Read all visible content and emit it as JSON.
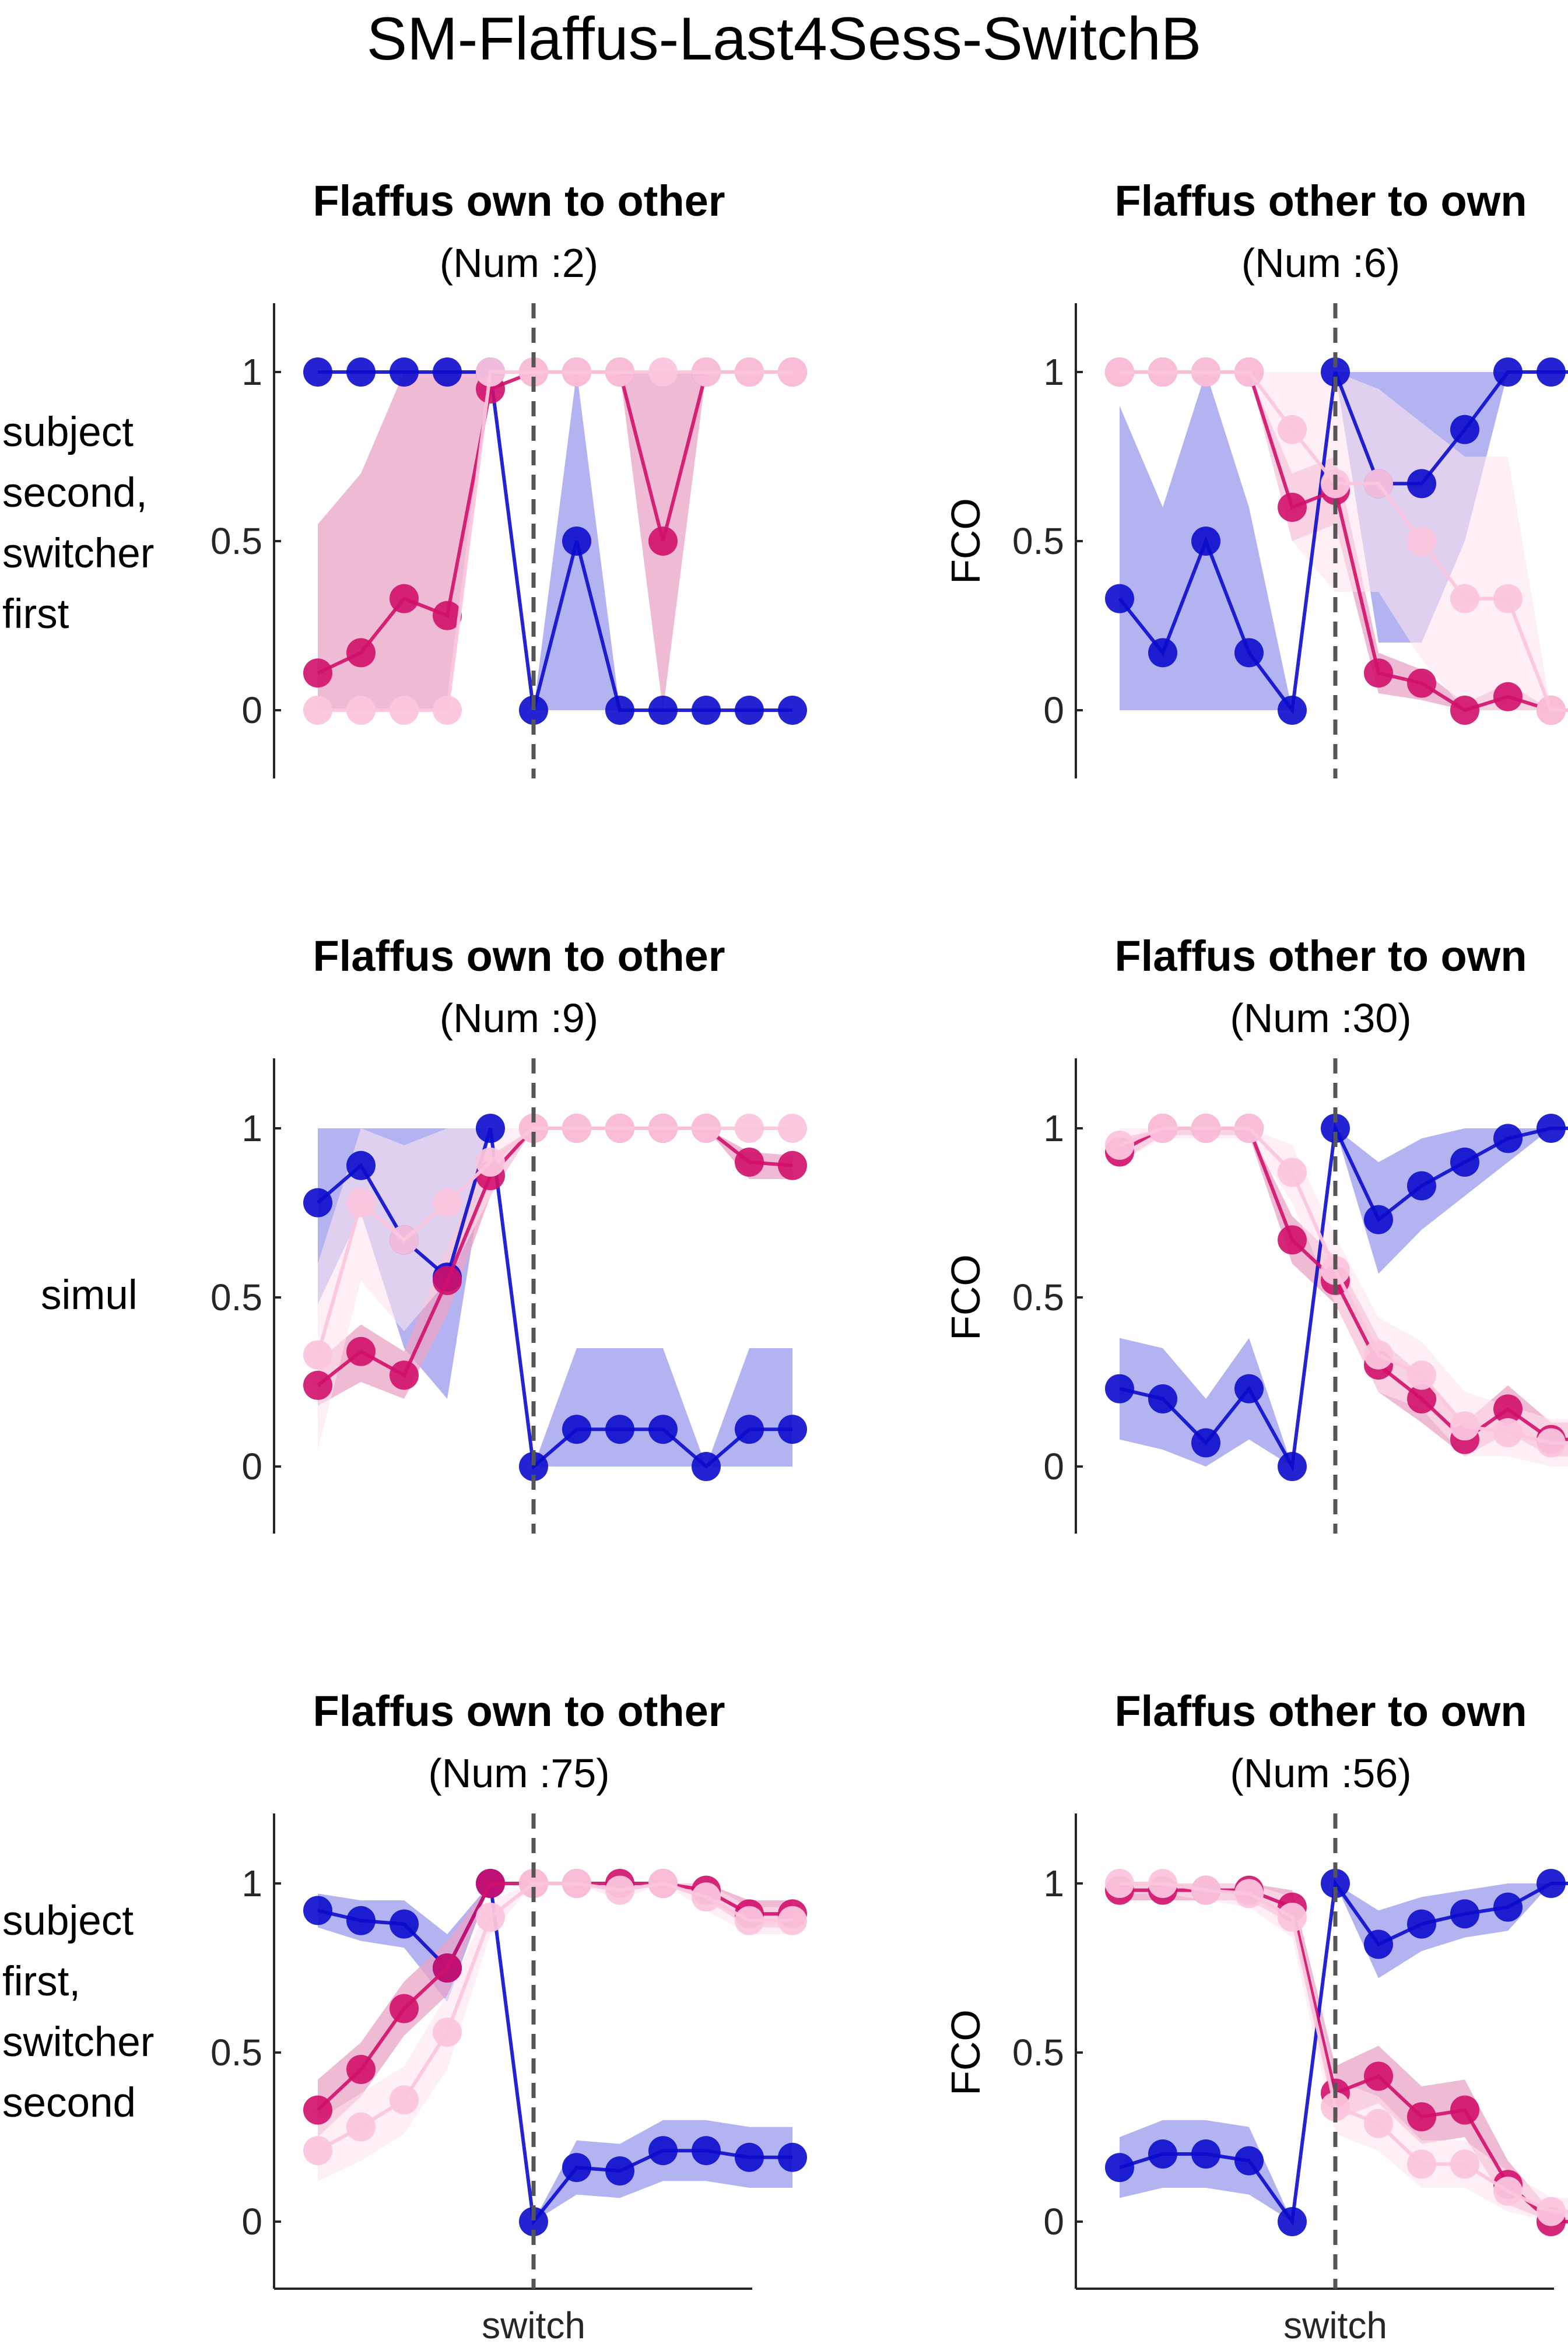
{
  "figure_title": "SM-Flaffus-Last4Sess-SwitchB",
  "row_labels": [
    [
      "subject",
      "second,",
      "switcher",
      "first"
    ],
    [
      "simul"
    ],
    [
      "subject",
      "first,",
      "switcher",
      "second"
    ]
  ],
  "colors": {
    "blue": "#0b0bcc",
    "blue_band": "#a6a6ef",
    "magenta": "#d0106a",
    "magenta_band": "#eaa3c4",
    "pink": "#fbc5dd",
    "pink_band": "#fde2ee",
    "axis": "#262626",
    "switch_line": "#555555"
  },
  "chart_data": [
    {
      "type": "line",
      "title": "Flaffus own to other",
      "subtitle": "(Num :2)",
      "ylabel": "",
      "xlabel": "",
      "ylim": [
        -0.2,
        1.2
      ],
      "yticks": [
        0,
        0.5,
        1
      ],
      "ytick_labels": [
        "0",
        "0.5",
        "1"
      ],
      "switch_x": 6,
      "x": [
        1,
        2,
        3,
        4,
        5,
        6,
        7,
        8,
        9,
        10,
        11,
        12
      ],
      "series": [
        {
          "color_key": "blue",
          "values": [
            1,
            1,
            1,
            1,
            1,
            0,
            0.5,
            0,
            0,
            0,
            0,
            0
          ],
          "band_lo": [
            1,
            1,
            1,
            1,
            1,
            0,
            0,
            0,
            0,
            0,
            0,
            0
          ],
          "band_hi": [
            1,
            1,
            1,
            1,
            1,
            0,
            1,
            0,
            0,
            0,
            0,
            0
          ]
        },
        {
          "color_key": "magenta",
          "values": [
            0.11,
            0.17,
            0.33,
            0.28,
            0.95,
            1,
            1,
            1,
            0.5,
            1,
            1,
            1
          ],
          "band_lo": [
            0,
            0,
            0,
            0,
            1,
            1,
            1,
            1,
            0,
            1,
            1,
            1
          ],
          "band_hi": [
            0.55,
            0.7,
            1,
            1,
            1,
            1,
            1,
            1,
            1,
            1,
            1,
            1
          ]
        },
        {
          "color_key": "pink",
          "values": [
            0,
            0,
            0,
            0,
            1,
            1,
            1,
            1,
            1,
            1,
            1,
            1
          ],
          "band_lo": null,
          "band_hi": null
        }
      ]
    },
    {
      "type": "line",
      "title": "Flaffus other to own",
      "subtitle": "(Num :6)",
      "ylabel": "FCO",
      "xlabel": "",
      "ylim": [
        -0.2,
        1.2
      ],
      "yticks": [
        0,
        0.5,
        1
      ],
      "ytick_labels": [
        "0",
        "0.5",
        "1"
      ],
      "switch_x": 6,
      "x": [
        1,
        2,
        3,
        4,
        5,
        6,
        7,
        8,
        9,
        10,
        11,
        12
      ],
      "series": [
        {
          "color_key": "blue",
          "values": [
            0.33,
            0.17,
            0.5,
            0.17,
            0,
            1,
            0.67,
            0.67,
            0.83,
            1,
            1,
            1
          ],
          "band_lo": [
            0,
            0,
            0,
            0,
            0,
            1,
            0.2,
            0.2,
            0.5,
            1,
            1,
            1
          ],
          "band_hi": [
            0.9,
            0.6,
            1,
            0.6,
            0,
            1,
            1,
            1,
            1,
            1,
            1,
            1
          ]
        },
        {
          "color_key": "magenta",
          "values": [
            1,
            1,
            1,
            1,
            0.6,
            0.65,
            0.11,
            0.08,
            0,
            0.04,
            0,
            0
          ],
          "band_lo": [
            1,
            1,
            1,
            1,
            0.5,
            0.55,
            0.05,
            0.03,
            0,
            0,
            0,
            0
          ],
          "band_hi": [
            1,
            1,
            1,
            1,
            0.7,
            0.75,
            0.17,
            0.12,
            0.02,
            0.08,
            0,
            0
          ]
        },
        {
          "color_key": "pink",
          "values": [
            1,
            1,
            1,
            1,
            0.83,
            0.67,
            0.67,
            0.5,
            0.33,
            0.33,
            0,
            0
          ],
          "band_lo": [
            1,
            1,
            1,
            1,
            0.5,
            0.35,
            0.35,
            0.15,
            0,
            0,
            0,
            0
          ],
          "band_hi": [
            1,
            1,
            1,
            1,
            1,
            1,
            0.95,
            0.85,
            0.75,
            0.75,
            0,
            0
          ]
        }
      ]
    },
    {
      "type": "line",
      "title": "Flaffus own to other",
      "subtitle": "(Num :9)",
      "ylabel": "",
      "xlabel": "",
      "ylim": [
        -0.2,
        1.2
      ],
      "yticks": [
        0,
        0.5,
        1
      ],
      "ytick_labels": [
        "0",
        "0.5",
        "1"
      ],
      "switch_x": 6,
      "x": [
        1,
        2,
        3,
        4,
        5,
        6,
        7,
        8,
        9,
        10,
        11,
        12
      ],
      "series": [
        {
          "color_key": "blue",
          "values": [
            0.78,
            0.89,
            0.67,
            0.56,
            1,
            0,
            0.11,
            0.11,
            0.11,
            0,
            0.11,
            0.11
          ],
          "band_lo": [
            0.48,
            0.75,
            0.35,
            0.2,
            1,
            0,
            0,
            0,
            0,
            0,
            0,
            0
          ],
          "band_hi": [
            1,
            1,
            1,
            1,
            1,
            0,
            0.35,
            0.35,
            0.35,
            0,
            0.35,
            0.35
          ]
        },
        {
          "color_key": "magenta",
          "values": [
            0.24,
            0.34,
            0.27,
            0.55,
            0.86,
            1,
            1,
            1,
            1,
            1,
            0.9,
            0.89
          ],
          "band_lo": [
            0.18,
            0.25,
            0.2,
            0.45,
            0.8,
            1,
            1,
            1,
            1,
            1,
            0.85,
            0.85
          ],
          "band_hi": [
            0.31,
            0.42,
            0.34,
            0.65,
            0.92,
            1,
            1,
            1,
            1,
            1,
            0.93,
            0.92
          ]
        },
        {
          "color_key": "pink",
          "values": [
            0.33,
            0.78,
            0.67,
            0.78,
            0.9,
            1,
            1,
            1,
            1,
            1,
            1,
            1
          ],
          "band_lo": [
            0.05,
            0.55,
            0.4,
            0.55,
            0.8,
            1,
            1,
            1,
            1,
            1,
            1,
            1
          ],
          "band_hi": [
            0.6,
            1,
            0.95,
            1,
            1,
            1,
            1,
            1,
            1,
            1,
            1,
            1
          ]
        }
      ]
    },
    {
      "type": "line",
      "title": "Flaffus other to own",
      "subtitle": "(Num :30)",
      "ylabel": "FCO",
      "xlabel": "",
      "ylim": [
        -0.2,
        1.2
      ],
      "yticks": [
        0,
        0.5,
        1
      ],
      "ytick_labels": [
        "0",
        "0.5",
        "1"
      ],
      "switch_x": 6,
      "x": [
        1,
        2,
        3,
        4,
        5,
        6,
        7,
        8,
        9,
        10,
        11,
        12
      ],
      "series": [
        {
          "color_key": "blue",
          "values": [
            0.23,
            0.2,
            0.07,
            0.23,
            0,
            1,
            0.73,
            0.83,
            0.9,
            0.97,
            1,
            1
          ],
          "band_lo": [
            0.08,
            0.05,
            0,
            0.08,
            0,
            1,
            0.57,
            0.7,
            0.8,
            0.9,
            1,
            1
          ],
          "band_hi": [
            0.38,
            0.35,
            0.2,
            0.38,
            0,
            1,
            0.9,
            0.97,
            1,
            1,
            1,
            1
          ]
        },
        {
          "color_key": "magenta",
          "values": [
            0.93,
            1,
            1,
            1,
            0.67,
            0.55,
            0.3,
            0.2,
            0.08,
            0.17,
            0.08,
            0.08
          ],
          "band_lo": [
            0.9,
            0.98,
            0.98,
            0.98,
            0.6,
            0.48,
            0.22,
            0.13,
            0.03,
            0.1,
            0.03,
            0.03
          ],
          "band_hi": [
            0.97,
            1,
            1,
            1,
            0.74,
            0.62,
            0.38,
            0.27,
            0.13,
            0.24,
            0.13,
            0.13
          ]
        },
        {
          "color_key": "pink",
          "values": [
            0.95,
            1,
            1,
            1,
            0.87,
            0.58,
            0.33,
            0.27,
            0.12,
            0.1,
            0.07,
            0.07
          ],
          "band_lo": [
            0.9,
            0.97,
            0.97,
            0.97,
            0.78,
            0.48,
            0.22,
            0.17,
            0.03,
            0.03,
            0,
            0
          ],
          "band_hi": [
            1,
            1,
            1,
            1,
            0.95,
            0.68,
            0.44,
            0.37,
            0.22,
            0.18,
            0.14,
            0.14
          ]
        }
      ]
    },
    {
      "type": "line",
      "title": "Flaffus own to other",
      "subtitle": "(Num :75)",
      "ylabel": "",
      "xlabel": "switch",
      "ylim": [
        -0.2,
        1.2
      ],
      "yticks": [
        0,
        0.5,
        1
      ],
      "ytick_labels": [
        "0",
        "0.5",
        "1"
      ],
      "switch_x": 6,
      "x": [
        1,
        2,
        3,
        4,
        5,
        6,
        7,
        8,
        9,
        10,
        11,
        12
      ],
      "series": [
        {
          "color_key": "blue",
          "values": [
            0.92,
            0.89,
            0.88,
            0.75,
            1,
            0,
            0.16,
            0.15,
            0.21,
            0.21,
            0.19,
            0.19
          ],
          "band_lo": [
            0.87,
            0.83,
            0.81,
            0.65,
            1,
            0,
            0.08,
            0.07,
            0.12,
            0.12,
            0.1,
            0.1
          ],
          "band_hi": [
            0.97,
            0.95,
            0.95,
            0.85,
            1,
            0,
            0.24,
            0.23,
            0.3,
            0.3,
            0.28,
            0.28
          ]
        },
        {
          "color_key": "magenta",
          "values": [
            0.33,
            0.45,
            0.63,
            0.75,
            1,
            1,
            1,
            1,
            1,
            0.98,
            0.91,
            0.91
          ],
          "band_lo": [
            0.25,
            0.37,
            0.55,
            0.67,
            1,
            1,
            1,
            1,
            1,
            0.95,
            0.87,
            0.87
          ],
          "band_hi": [
            0.42,
            0.53,
            0.71,
            0.83,
            1,
            1,
            1,
            1,
            1,
            1,
            0.95,
            0.95
          ]
        },
        {
          "color_key": "pink",
          "values": [
            0.21,
            0.28,
            0.36,
            0.56,
            0.9,
            1,
            1,
            0.98,
            1,
            0.96,
            0.89,
            0.89
          ],
          "band_lo": [
            0.12,
            0.18,
            0.26,
            0.45,
            0.85,
            1,
            1,
            0.95,
            1,
            0.92,
            0.85,
            0.85
          ],
          "band_hi": [
            0.3,
            0.38,
            0.46,
            0.67,
            0.95,
            1,
            1,
            1,
            1,
            1,
            0.93,
            0.93
          ]
        }
      ]
    },
    {
      "type": "line",
      "title": "Flaffus other to own",
      "subtitle": "(Num :56)",
      "ylabel": "FCO",
      "xlabel": "switch",
      "ylim": [
        -0.2,
        1.2
      ],
      "yticks": [
        0,
        0.5,
        1
      ],
      "ytick_labels": [
        "0",
        "0.5",
        "1"
      ],
      "switch_x": 6,
      "x": [
        1,
        2,
        3,
        4,
        5,
        6,
        7,
        8,
        9,
        10,
        11,
        12
      ],
      "series": [
        {
          "color_key": "blue",
          "values": [
            0.16,
            0.2,
            0.2,
            0.18,
            0,
            1,
            0.82,
            0.88,
            0.91,
            0.93,
            1,
            1
          ],
          "band_lo": [
            0.07,
            0.1,
            0.1,
            0.08,
            0,
            1,
            0.72,
            0.8,
            0.84,
            0.86,
            1,
            1
          ],
          "band_hi": [
            0.25,
            0.3,
            0.3,
            0.28,
            0,
            1,
            0.92,
            0.96,
            0.98,
            1,
            1,
            1
          ]
        },
        {
          "color_key": "magenta",
          "values": [
            0.98,
            0.98,
            0.98,
            0.98,
            0.93,
            0.38,
            0.43,
            0.31,
            0.33,
            0.11,
            0,
            0
          ],
          "band_lo": [
            0.95,
            0.95,
            0.95,
            0.95,
            0.88,
            0.3,
            0.35,
            0.23,
            0.25,
            0.05,
            0,
            0
          ],
          "band_hi": [
            1,
            1,
            1,
            1,
            0.98,
            0.46,
            0.52,
            0.4,
            0.42,
            0.18,
            0.03,
            0.03
          ]
        },
        {
          "color_key": "pink",
          "values": [
            1,
            1,
            0.98,
            0.97,
            0.9,
            0.34,
            0.29,
            0.17,
            0.17,
            0.09,
            0.03,
            0.03
          ],
          "band_lo": [
            0.97,
            0.97,
            0.95,
            0.93,
            0.84,
            0.26,
            0.21,
            0.1,
            0.1,
            0.03,
            0,
            0
          ],
          "band_hi": [
            1,
            1,
            1,
            1,
            0.96,
            0.42,
            0.37,
            0.24,
            0.24,
            0.15,
            0.07,
            0.07
          ]
        }
      ]
    }
  ]
}
